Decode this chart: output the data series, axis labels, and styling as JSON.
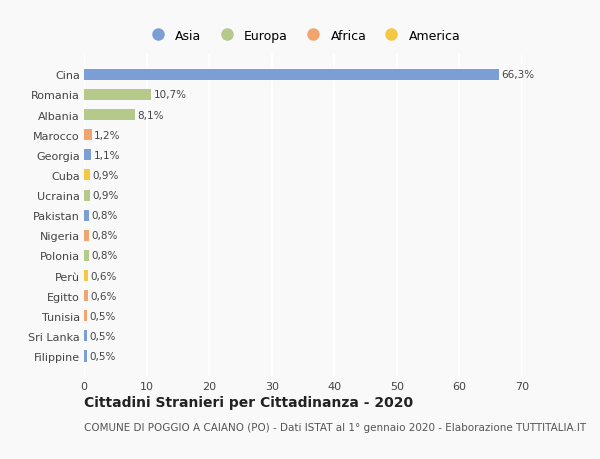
{
  "categories": [
    "Filippine",
    "Sri Lanka",
    "Tunisia",
    "Egitto",
    "Perù",
    "Polonia",
    "Nigeria",
    "Pakistan",
    "Ucraina",
    "Cuba",
    "Georgia",
    "Marocco",
    "Albania",
    "Romania",
    "Cina"
  ],
  "values": [
    0.5,
    0.5,
    0.5,
    0.6,
    0.6,
    0.8,
    0.8,
    0.8,
    0.9,
    0.9,
    1.1,
    1.2,
    8.1,
    10.7,
    66.3
  ],
  "labels": [
    "0,5%",
    "0,5%",
    "0,5%",
    "0,6%",
    "0,6%",
    "0,8%",
    "0,8%",
    "0,8%",
    "0,9%",
    "0,9%",
    "1,1%",
    "1,2%",
    "8,1%",
    "10,7%",
    "66,3%"
  ],
  "colors": [
    "#7b9fd4",
    "#7b9fd4",
    "#f2a46e",
    "#f2a46e",
    "#f5c842",
    "#b5c98a",
    "#f2a46e",
    "#7b9fd4",
    "#b5c98a",
    "#f5c842",
    "#7b9fd4",
    "#f2a46e",
    "#b5c98a",
    "#b5c98a",
    "#7b9fd4"
  ],
  "continent": [
    "Asia",
    "Asia",
    "Africa",
    "Africa",
    "America",
    "Europa",
    "Africa",
    "Asia",
    "Europa",
    "America",
    "Asia",
    "Africa",
    "Europa",
    "Europa",
    "Asia"
  ],
  "legend_labels": [
    "Asia",
    "Europa",
    "Africa",
    "America"
  ],
  "legend_colors": [
    "#7b9fd4",
    "#b5c98a",
    "#f2a46e",
    "#f5c842"
  ],
  "title": "Cittadini Stranieri per Cittadinanza - 2020",
  "subtitle": "COMUNE DI POGGIO A CAIANO (PO) - Dati ISTAT al 1° gennaio 2020 - Elaborazione TUTTITALIA.IT",
  "xlim": [
    0,
    70
  ],
  "xticks": [
    0,
    10,
    20,
    30,
    40,
    50,
    60,
    70
  ],
  "background_color": "#f9f9f9",
  "grid_color": "#ffffff",
  "bar_height": 0.55,
  "title_fontsize": 10,
  "subtitle_fontsize": 7.5,
  "label_fontsize": 7.5,
  "tick_fontsize": 8,
  "legend_fontsize": 9
}
